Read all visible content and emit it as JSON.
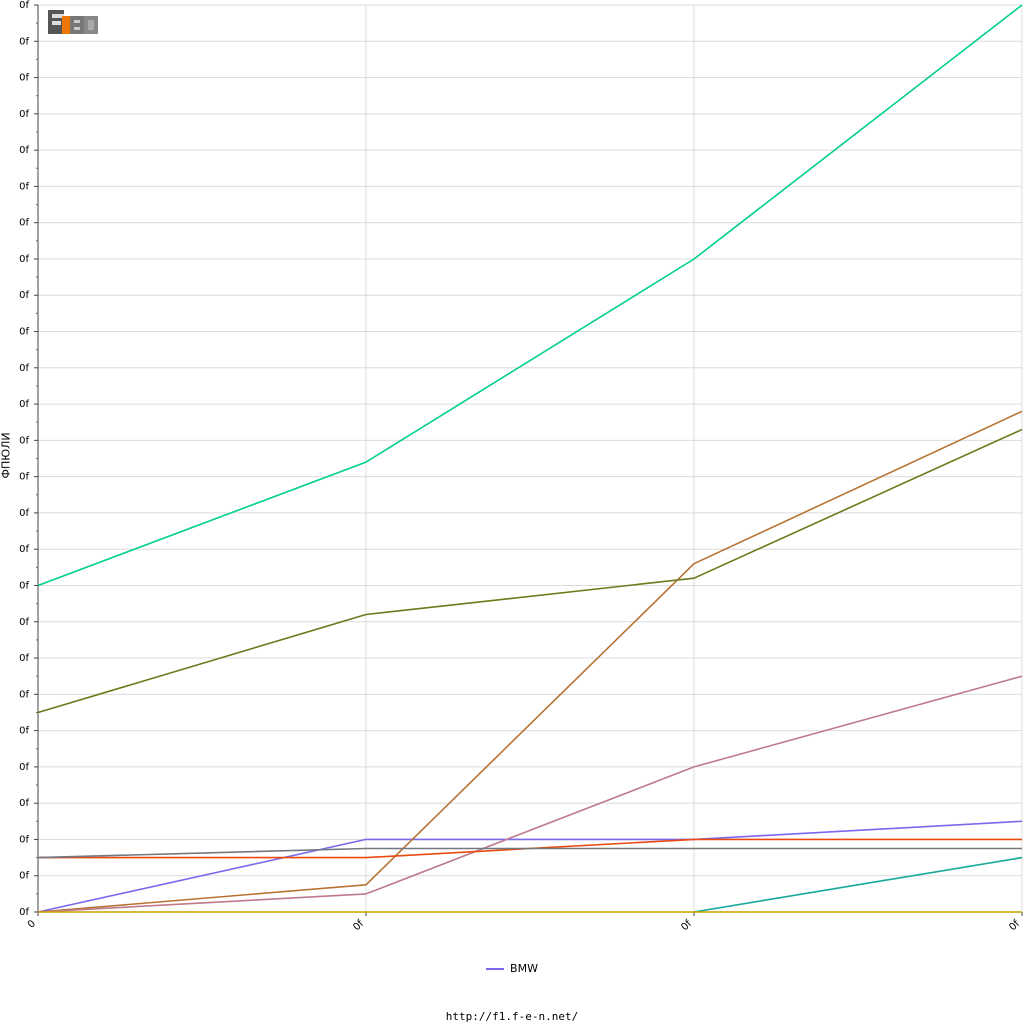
{
  "logo": {
    "text": "F1EN"
  },
  "legend": {
    "entries": [
      {
        "name": "BMW",
        "color": "#7b68ee"
      }
    ]
  },
  "footer": {
    "url": "http://f1.f-e-n.net/"
  },
  "chart_data": {
    "type": "line",
    "ylabel": "ФПЮЛИ",
    "xlabel": "",
    "x_tick_labels": [
      "0",
      "0f",
      "0f",
      "0f"
    ],
    "y_tick_labels": [
      "0f",
      "0f",
      "0f",
      "0f",
      "0f",
      "0f",
      "0f",
      "0f",
      "0f",
      "0f",
      "0f",
      "0f",
      "0f",
      "0f",
      "0f",
      "0f",
      "0f",
      "0f",
      "0f",
      "0f",
      "0f",
      "0f",
      "0f",
      "0f",
      "0f",
      "0f"
    ],
    "x": [
      0,
      1,
      2,
      3
    ],
    "ylim": [
      0,
      25
    ],
    "grid": true,
    "legend_position": "bottom-center",
    "series": [
      {
        "name": "BMW",
        "color": "#7b68ee",
        "values": [
          0,
          2,
          2,
          2.5
        ]
      },
      {
        "color": "#00d08a",
        "values": [
          9,
          12.4,
          18,
          25
        ]
      },
      {
        "color": "#b87333",
        "values": [
          0,
          0.75,
          9.6,
          13.8
        ]
      },
      {
        "color": "#6b7a1a",
        "values": [
          5.5,
          8.2,
          9.2,
          13.3
        ]
      },
      {
        "color": "#c07a8a",
        "values": [
          0,
          0.5,
          4,
          6.5
        ]
      },
      {
        "color": "#e84a10",
        "values": [
          1.5,
          1.5,
          2,
          2
        ]
      },
      {
        "color": "#707880",
        "values": [
          1.5,
          1.75,
          1.75,
          1.75
        ]
      },
      {
        "color": "#16a89a",
        "values": [
          null,
          null,
          0,
          1.5
        ]
      },
      {
        "color": "#c8a000",
        "values": [
          0,
          0,
          0,
          0
        ]
      }
    ]
  }
}
